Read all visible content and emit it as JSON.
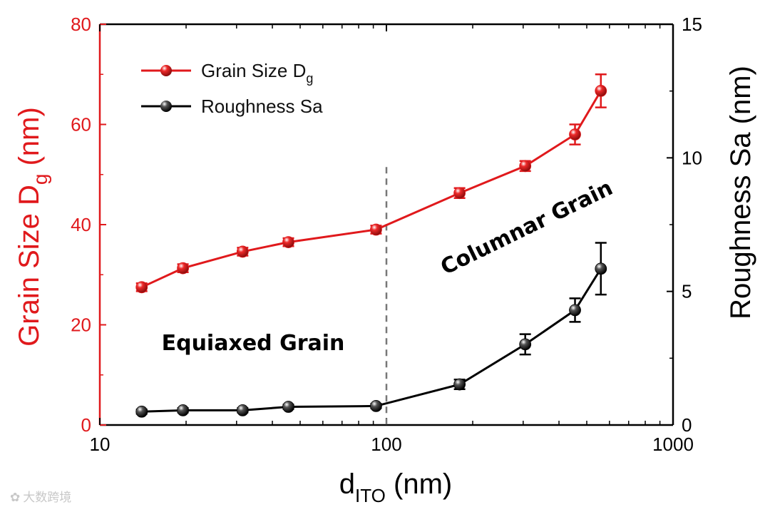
{
  "chart_data": {
    "type": "line",
    "x_scale": "log",
    "xlim": [
      10,
      1000
    ],
    "x_ticks": [
      "10",
      "100",
      "1000"
    ],
    "x_label_main": "d",
    "x_label_sub": "ITO",
    "x_label_unit": " (nm)",
    "y_left": {
      "label_main": "Grain Size D",
      "label_sub": "g",
      "label_unit": " (nm)",
      "ylim": [
        0,
        80
      ],
      "ticks": [
        "0",
        "20",
        "40",
        "60",
        "80"
      ],
      "color": "#e0191c"
    },
    "y_right": {
      "label": "Roughness Sa (nm)",
      "ylim": [
        0,
        15
      ],
      "ticks": [
        "0",
        "5",
        "10",
        "15"
      ],
      "color": "#000000"
    },
    "x": [
      14,
      19.5,
      31.5,
      45.5,
      92,
      180,
      305,
      455,
      560
    ],
    "series": [
      {
        "name": "Grain Size D",
        "name_sub": "g",
        "axis": "left",
        "color": "#e0191c",
        "values": [
          27.5,
          31.3,
          34.6,
          36.5,
          39.0,
          46.3,
          51.7,
          58.0,
          66.7
        ],
        "errors": [
          0.8,
          0.8,
          0.8,
          0.8,
          0.8,
          1.0,
          1.0,
          2.0,
          3.3
        ]
      },
      {
        "name": "Roughness Sa",
        "name_sub": "",
        "axis": "right",
        "color": "#000000",
        "values": [
          0.5,
          0.55,
          0.55,
          0.68,
          0.71,
          1.52,
          3.02,
          4.3,
          5.85
        ],
        "errors": [
          0.08,
          0.08,
          0.08,
          0.08,
          0.08,
          0.18,
          0.38,
          0.44,
          0.97
        ]
      }
    ],
    "reference_line": {
      "x": 100,
      "style": "dashed",
      "color": "#777777"
    },
    "annotations": [
      {
        "text": "Equiaxed Grain",
        "color": "#1a9a2e"
      },
      {
        "text": "Columnar Grain",
        "color": "#1b6fb5"
      }
    ],
    "legend_position": "top-left"
  },
  "watermark": {
    "text": "大数跨境"
  }
}
